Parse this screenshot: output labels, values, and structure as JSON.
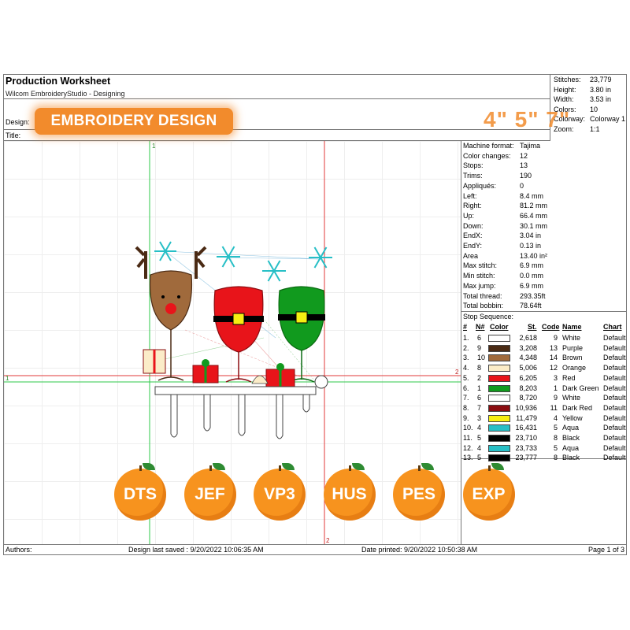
{
  "header": {
    "title": "Production Worksheet",
    "app": "Wilcom EmbroideryStudio - Designing",
    "design_label": "Design:",
    "title_label": "Title:"
  },
  "banner": {
    "text": "EMBROIDERY DESIGN",
    "sizes": "4\" 5\" 7\""
  },
  "stats": [
    {
      "k": "Stitches:",
      "v": "23,779"
    },
    {
      "k": "Height:",
      "v": "3.80 in"
    },
    {
      "k": "Width:",
      "v": "3.53 in"
    },
    {
      "k": "Colors:",
      "v": "10"
    },
    {
      "k": "Colorway:",
      "v": "Colorway 1"
    },
    {
      "k": "Zoom:",
      "v": "1:1"
    }
  ],
  "machine": [
    {
      "k": "Machine format:",
      "v": "Tajima"
    },
    {
      "k": "Color changes:",
      "v": "12"
    },
    {
      "k": "Stops:",
      "v": "13"
    },
    {
      "k": "Trims:",
      "v": "190"
    },
    {
      "k": "Appliqués:",
      "v": "0"
    },
    {
      "k": "Left:",
      "v": "8.4 mm"
    },
    {
      "k": "Right:",
      "v": "81.2 mm"
    },
    {
      "k": "Up:",
      "v": "66.4 mm"
    },
    {
      "k": "Down:",
      "v": "30.1 mm"
    },
    {
      "k": "EndX:",
      "v": "3.04 in"
    },
    {
      "k": "EndY:",
      "v": "0.13 in"
    },
    {
      "k": "Area",
      "v": "13.40 in²"
    },
    {
      "k": "Max stitch:",
      "v": "6.9 mm"
    },
    {
      "k": "Min stitch:",
      "v": "0.0 mm"
    },
    {
      "k": "Max jump:",
      "v": "6.9 mm"
    },
    {
      "k": "Total thread:",
      "v": "293.35ft"
    },
    {
      "k": "Total bobbin:",
      "v": "78.64ft"
    }
  ],
  "stop_sequence": {
    "title": "Stop Sequence:",
    "headers": {
      "num": "#",
      "n": "N#",
      "color": "Color",
      "st": "St.",
      "code": "Code",
      "name": "Name",
      "chart": "Chart"
    },
    "rows": [
      {
        "num": "1.",
        "n": "6",
        "color": "#ffffff",
        "st": "2,618",
        "code": "9",
        "name": "White",
        "chart": "Default"
      },
      {
        "num": "2.",
        "n": "9",
        "color": "#4a2a14",
        "st": "3,208",
        "code": "13",
        "name": "Purple",
        "chart": "Default"
      },
      {
        "num": "3.",
        "n": "10",
        "color": "#a06a3c",
        "st": "4,348",
        "code": "14",
        "name": "Brown",
        "chart": "Default"
      },
      {
        "num": "4.",
        "n": "8",
        "color": "#fbecc8",
        "st": "5,006",
        "code": "12",
        "name": "Orange",
        "chart": "Default"
      },
      {
        "num": "5.",
        "n": "2",
        "color": "#e8141a",
        "st": "6,205",
        "code": "3",
        "name": "Red",
        "chart": "Default"
      },
      {
        "num": "6.",
        "n": "1",
        "color": "#119a1e",
        "st": "8,203",
        "code": "1",
        "name": "Dark Green",
        "chart": "Default"
      },
      {
        "num": "7.",
        "n": "6",
        "color": "#ffffff",
        "st": "8,720",
        "code": "9",
        "name": "White",
        "chart": "Default"
      },
      {
        "num": "8.",
        "n": "7",
        "color": "#8a0c10",
        "st": "10,936",
        "code": "11",
        "name": "Dark Red",
        "chart": "Default"
      },
      {
        "num": "9.",
        "n": "3",
        "color": "#f6ee12",
        "st": "11,479",
        "code": "4",
        "name": "Yellow",
        "chart": "Default"
      },
      {
        "num": "10.",
        "n": "4",
        "color": "#27bfc6",
        "st": "16,431",
        "code": "5",
        "name": "Aqua",
        "chart": "Default"
      },
      {
        "num": "11.",
        "n": "5",
        "color": "#000000",
        "st": "23,710",
        "code": "8",
        "name": "Black",
        "chart": "Default"
      },
      {
        "num": "12.",
        "n": "4",
        "color": "#27bfc6",
        "st": "23,733",
        "code": "5",
        "name": "Aqua",
        "chart": "Default"
      },
      {
        "num": "13.",
        "n": "5",
        "color": "#000000",
        "st": "23,777",
        "code": "8",
        "name": "Black",
        "chart": "Default"
      }
    ]
  },
  "guides": {
    "a": "1",
    "b": "2"
  },
  "formats": [
    "DTS",
    "JEF",
    "VP3",
    "HUS",
    "PES",
    "EXP"
  ],
  "footer": {
    "authors": "Authors:",
    "saved": "Design last saved : 9/20/2022 10:06:35 AM",
    "printed": "Date printed: 9/20/2022 10:50:38 AM",
    "page": "Page 1 of 3"
  }
}
